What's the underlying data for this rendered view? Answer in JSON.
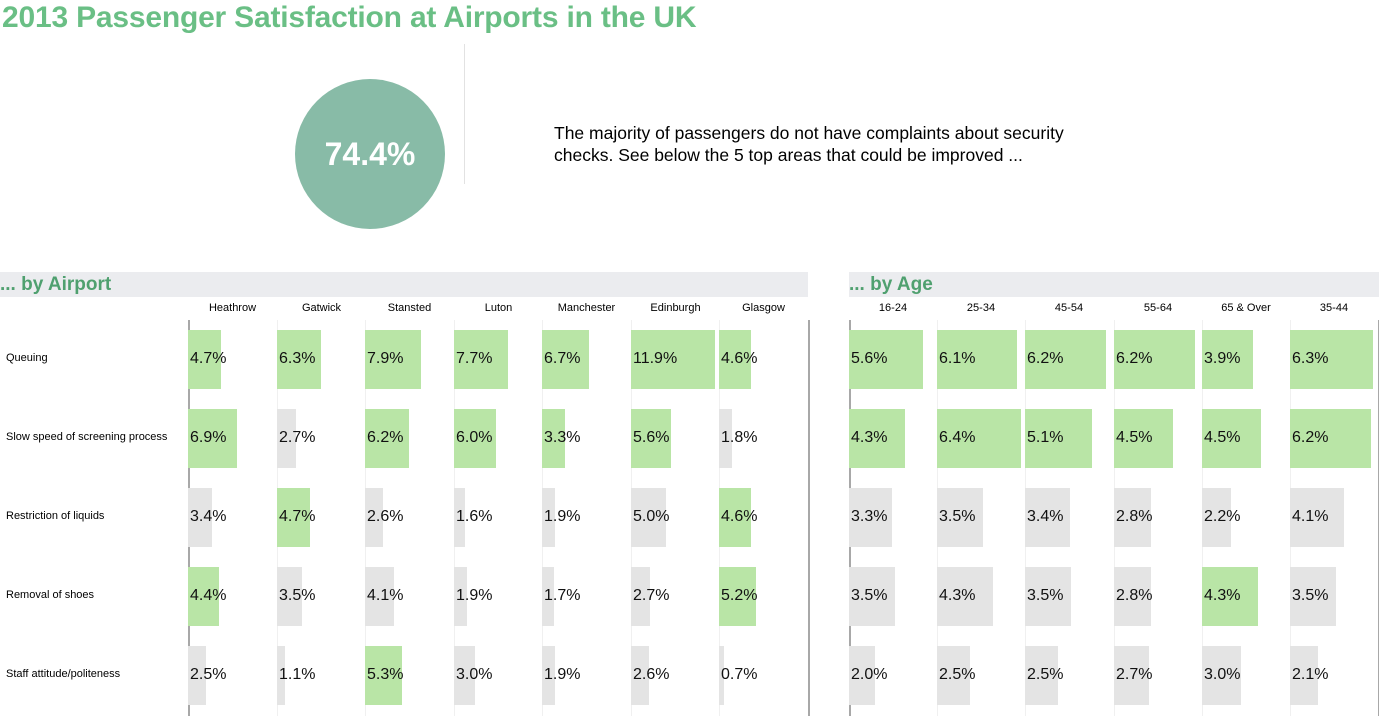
{
  "title": "2013 Passenger Satisfaction at Airports in the UK",
  "kpi": {
    "value": "74.4%",
    "fraction": 0.744
  },
  "summary": "The majority of passengers do not have complaints about security checks. See below the 5 top areas that could be improved ...",
  "colors": {
    "title": "#6abf85",
    "circle": "#88bba7",
    "highlight": "#b9e5a6",
    "normal": "#e4e4e4",
    "band": "#ebecef"
  },
  "chart_data": [
    {
      "type": "bar",
      "title": "... by Airport",
      "orientation": "horizontal",
      "categories": [
        "Queuing",
        "Slow speed of screening process",
        "Restriction of liquids",
        "Removal of shoes",
        "Staff attitude/politeness"
      ],
      "xmax": 11.9,
      "series": [
        {
          "name": "Heathrow",
          "values": [
            4.7,
            6.9,
            3.4,
            4.4,
            2.5
          ],
          "labels": [
            "4.7%",
            "6.9%",
            "3.4%",
            "4.4%",
            "2.5%"
          ],
          "highlight": [
            true,
            true,
            false,
            true,
            false
          ]
        },
        {
          "name": "Gatwick",
          "values": [
            6.3,
            2.7,
            4.7,
            3.5,
            1.1
          ],
          "labels": [
            "6.3%",
            "2.7%",
            "4.7%",
            "3.5%",
            "1.1%"
          ],
          "highlight": [
            true,
            false,
            true,
            false,
            false
          ]
        },
        {
          "name": "Stansted",
          "values": [
            7.9,
            6.2,
            2.6,
            4.1,
            5.3
          ],
          "labels": [
            "7.9%",
            "6.2%",
            "2.6%",
            "4.1%",
            "5.3%"
          ],
          "highlight": [
            true,
            true,
            false,
            false,
            true
          ]
        },
        {
          "name": "Luton",
          "values": [
            7.7,
            6.0,
            1.6,
            1.9,
            3.0
          ],
          "labels": [
            "7.7%",
            "6.0%",
            "1.6%",
            "1.9%",
            "3.0%"
          ],
          "highlight": [
            true,
            true,
            false,
            false,
            false
          ]
        },
        {
          "name": "Manchester",
          "values": [
            6.7,
            3.3,
            1.9,
            1.7,
            1.9
          ],
          "labels": [
            "6.7%",
            "3.3%",
            "1.9%",
            "1.7%",
            "1.9%"
          ],
          "highlight": [
            true,
            true,
            false,
            false,
            false
          ]
        },
        {
          "name": "Edinburgh",
          "values": [
            11.9,
            5.6,
            5.0,
            2.7,
            2.6
          ],
          "labels": [
            "11.9%",
            "5.6%",
            "5.0%",
            "2.7%",
            "2.6%"
          ],
          "highlight": [
            true,
            true,
            false,
            false,
            false
          ]
        },
        {
          "name": "Glasgow",
          "values": [
            4.6,
            1.8,
            4.6,
            5.2,
            0.7
          ],
          "labels": [
            "4.6%",
            "1.8%",
            "4.6%",
            "5.2%",
            "0.7%"
          ],
          "highlight": [
            true,
            false,
            true,
            true,
            false
          ]
        }
      ]
    },
    {
      "type": "bar",
      "title": "... by Age",
      "orientation": "horizontal",
      "categories": [
        "Queuing",
        "Slow speed of screening process",
        "Restriction of liquids",
        "Removal of shoes",
        "Staff attitude/politeness"
      ],
      "xmax": 6.4,
      "series": [
        {
          "name": "16-24",
          "values": [
            5.6,
            4.3,
            3.3,
            3.5,
            2.0
          ],
          "labels": [
            "5.6%",
            "4.3%",
            "3.3%",
            "3.5%",
            "2.0%"
          ],
          "highlight": [
            true,
            true,
            false,
            false,
            false
          ]
        },
        {
          "name": "25-34",
          "values": [
            6.1,
            6.4,
            3.5,
            4.3,
            2.5
          ],
          "labels": [
            "6.1%",
            "6.4%",
            "3.5%",
            "4.3%",
            "2.5%"
          ],
          "highlight": [
            true,
            true,
            false,
            false,
            false
          ]
        },
        {
          "name": "45-54",
          "values": [
            6.2,
            5.1,
            3.4,
            3.5,
            2.5
          ],
          "labels": [
            "6.2%",
            "5.1%",
            "3.4%",
            "3.5%",
            "2.5%"
          ],
          "highlight": [
            true,
            true,
            false,
            false,
            false
          ]
        },
        {
          "name": "55-64",
          "values": [
            6.2,
            4.5,
            2.8,
            2.8,
            2.7
          ],
          "labels": [
            "6.2%",
            "4.5%",
            "2.8%",
            "2.8%",
            "2.7%"
          ],
          "highlight": [
            true,
            true,
            false,
            false,
            false
          ]
        },
        {
          "name": "65 & Over",
          "values": [
            3.9,
            4.5,
            2.2,
            4.3,
            3.0
          ],
          "labels": [
            "3.9%",
            "4.5%",
            "2.2%",
            "4.3%",
            "3.0%"
          ],
          "highlight": [
            true,
            true,
            false,
            true,
            false
          ]
        },
        {
          "name": "35-44",
          "values": [
            6.3,
            6.2,
            4.1,
            3.5,
            2.1
          ],
          "labels": [
            "6.3%",
            "6.2%",
            "4.1%",
            "3.5%",
            "2.1%"
          ],
          "highlight": [
            true,
            true,
            false,
            false,
            false
          ]
        }
      ]
    }
  ]
}
